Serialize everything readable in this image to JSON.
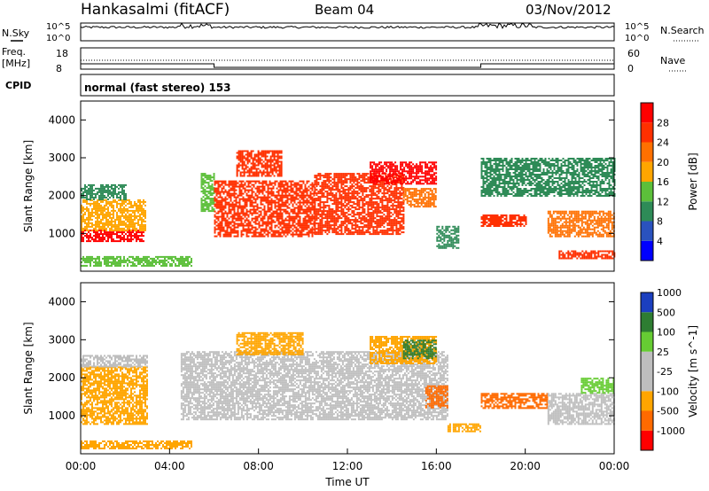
{
  "header": {
    "station": "Hankasalmi (fitACF)",
    "beam": "Beam 04",
    "date": "03/Nov/2012"
  },
  "labels": {
    "nsky": "N.Sky",
    "nsearch": "N.Search",
    "freq": "Freq.",
    "mhz": "[MHz]",
    "cpid": "CPID",
    "nave": "Nave",
    "cpid_name": "normal (fast stereo) 153"
  },
  "noise_ticks": {
    "left": [
      "10^5",
      "10^0"
    ],
    "right": [
      "10^5",
      "10^0"
    ]
  },
  "freq_ticks": {
    "left": [
      "18",
      "8"
    ],
    "right": [
      "60",
      "0"
    ]
  },
  "colors": {
    "power": [
      "#0000ff",
      "#2a52be",
      "#2e8b57",
      "#5cbf3a",
      "#ffa500",
      "#ff7000",
      "#ff3000",
      "#ff0000"
    ],
    "velocity": [
      "#1b3fbf",
      "#2e7d32",
      "#66cc33",
      "#bebebe",
      "#bebebe",
      "#ffa500",
      "#ff6a00",
      "#ff0000"
    ]
  },
  "chart_data": [
    {
      "type": "heatmap",
      "panel": "power",
      "ylabel": "Slant Range [km]",
      "ylim": [
        0,
        4500
      ],
      "yticks": [
        "1000",
        "2000",
        "3000",
        "4000"
      ],
      "xlim": [
        "00:00",
        "24:00"
      ],
      "colorbar": {
        "label": "Power [dB]",
        "ticks": [
          "4",
          "8",
          "12",
          "16",
          "20",
          "24",
          "28"
        ],
        "range": [
          0,
          32
        ]
      },
      "regions": [
        {
          "t": [
            0.0,
            2.8
          ],
          "r": [
            800,
            1100
          ],
          "level": 28
        },
        {
          "t": [
            0.0,
            2.9
          ],
          "r": [
            1100,
            1900
          ],
          "level": 16
        },
        {
          "t": [
            0.0,
            2.0
          ],
          "r": [
            1900,
            2300
          ],
          "level": 8
        },
        {
          "t": [
            5.4,
            6.0
          ],
          "r": [
            1600,
            2600
          ],
          "level": 12
        },
        {
          "t": [
            6.0,
            10.5
          ],
          "r": [
            900,
            2400
          ],
          "level": 26
        },
        {
          "t": [
            7.0,
            9.0
          ],
          "r": [
            2500,
            3200
          ],
          "level": 24
        },
        {
          "t": [
            10.5,
            14.5
          ],
          "r": [
            1000,
            2600
          ],
          "level": 26
        },
        {
          "t": [
            13.0,
            16.0
          ],
          "r": [
            2300,
            2900
          ],
          "level": 28
        },
        {
          "t": [
            14.5,
            16.0
          ],
          "r": [
            1700,
            2200
          ],
          "level": 20
        },
        {
          "t": [
            16.0,
            17.0
          ],
          "r": [
            600,
            1200
          ],
          "level": 8
        },
        {
          "t": [
            18.0,
            20.0
          ],
          "r": [
            1200,
            1500
          ],
          "level": 24
        },
        {
          "t": [
            18.0,
            24.0
          ],
          "r": [
            2000,
            3000
          ],
          "level": 8
        },
        {
          "t": [
            21.0,
            24.0
          ],
          "r": [
            900,
            1600
          ],
          "level": 20
        },
        {
          "t": [
            21.5,
            24.0
          ],
          "r": [
            350,
            550
          ],
          "level": 26
        },
        {
          "t": [
            0.0,
            5.0
          ],
          "r": [
            150,
            400
          ],
          "level": 12
        }
      ]
    },
    {
      "type": "heatmap",
      "panel": "velocity",
      "ylabel": "Slant Range [km]",
      "xlabel": "Time UT",
      "ylim": [
        0,
        4500
      ],
      "yticks": [
        "1000",
        "2000",
        "3000",
        "4000"
      ],
      "xlim": [
        "00:00",
        "24:00"
      ],
      "xticks": [
        "00:00",
        "04:00",
        "08:00",
        "12:00",
        "16:00",
        "20:00",
        "00:00"
      ],
      "colorbar": {
        "label": "Velocity [m s^-1]",
        "ticks": [
          "1000",
          "500",
          "100",
          "25",
          "-25",
          "-100",
          "-500",
          "-1000"
        ]
      },
      "regions": [
        {
          "t": [
            0.0,
            3.0
          ],
          "r": [
            800,
            2300
          ],
          "v": -100
        },
        {
          "t": [
            0.0,
            3.0
          ],
          "r": [
            2300,
            2600
          ],
          "v": 0
        },
        {
          "t": [
            4.5,
            16.5
          ],
          "r": [
            900,
            2700
          ],
          "v": 0
        },
        {
          "t": [
            7.0,
            10.0
          ],
          "r": [
            2600,
            3200
          ],
          "v": -100
        },
        {
          "t": [
            13.0,
            16.0
          ],
          "r": [
            2400,
            3100
          ],
          "v": -100
        },
        {
          "t": [
            14.5,
            16.0
          ],
          "r": [
            2500,
            3000
          ],
          "v": 500
        },
        {
          "t": [
            15.5,
            16.5
          ],
          "r": [
            1200,
            1800
          ],
          "v": -500
        },
        {
          "t": [
            16.5,
            18.0
          ],
          "r": [
            600,
            800
          ],
          "v": -100
        },
        {
          "t": [
            18.0,
            21.0
          ],
          "r": [
            1200,
            1600
          ],
          "v": -500
        },
        {
          "t": [
            21.0,
            24.0
          ],
          "r": [
            800,
            1600
          ],
          "v": 0
        },
        {
          "t": [
            22.5,
            24.0
          ],
          "r": [
            1600,
            2000
          ],
          "v": 100
        },
        {
          "t": [
            0.0,
            5.0
          ],
          "r": [
            150,
            350
          ],
          "v": -100
        }
      ]
    }
  ]
}
